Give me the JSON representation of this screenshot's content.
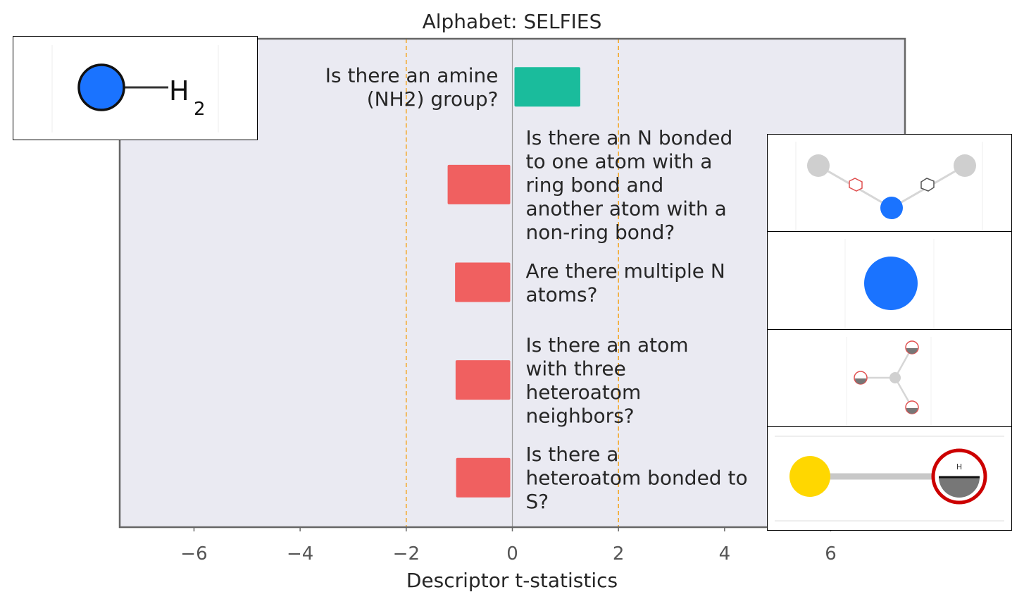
{
  "chart_data": {
    "type": "bar",
    "orientation": "horizontal",
    "title": "Alphabet: SELFIES",
    "xlabel": "Descriptor t-statistics",
    "ylabel": "",
    "xlim": [
      -7.4,
      7.4
    ],
    "xticks": [
      -6,
      -4,
      -2,
      0,
      2,
      4,
      6
    ],
    "xtick_labels": [
      "−6",
      "−4",
      "−2",
      "0",
      "2",
      "4",
      "6"
    ],
    "reference_lines": [
      -2,
      2
    ],
    "bars": [
      {
        "label": "Is there an amine (NH2) group?",
        "lines": [
          "Is there an amine",
          "(NH2) group?"
        ],
        "value": 1.28,
        "color": "#1abc9c"
      },
      {
        "label": "Is there an N bonded to one atom with a ring bond and another atom with a non-ring bond?",
        "lines": [
          "Is there an N bonded",
          "to one atom with a",
          "ring bond and",
          "another atom with a",
          "non-ring bond?"
        ],
        "value": -1.22,
        "color": "#f06060"
      },
      {
        "label": "Are there multiple N atoms?",
        "lines": [
          "Are there multiple N",
          "atoms?"
        ],
        "value": -1.08,
        "color": "#f06060"
      },
      {
        "label": "Is there an atom with three heteroatom neighbors?",
        "lines": [
          "Is there an atom",
          "with three",
          "heteroatom",
          "neighbors?"
        ],
        "value": -1.07,
        "color": "#f06060"
      },
      {
        "label": "Is there a heteroatom bonded to S?",
        "lines": [
          "Is there a",
          "heteroatom bonded to",
          "S?"
        ],
        "value": -1.06,
        "color": "#f06060"
      }
    ],
    "grid": false
  },
  "colors": {
    "plot_background": "#eaeaf2",
    "positive": "#1abc9c",
    "negative": "#f06060",
    "threshold_line": "#f5a623",
    "zero_line": "#999999"
  },
  "insets": [
    {
      "icon": "nh2-group-icon",
      "text_main": "H",
      "text_sub": "2"
    },
    {
      "icon": "n-ring-nonring-bond-icon"
    },
    {
      "icon": "nitrogen-atom-icon"
    },
    {
      "icon": "three-heteroatom-neighbors-icon"
    },
    {
      "icon": "sulfur-heteroatom-bond-icon",
      "text_main": "H"
    }
  ]
}
